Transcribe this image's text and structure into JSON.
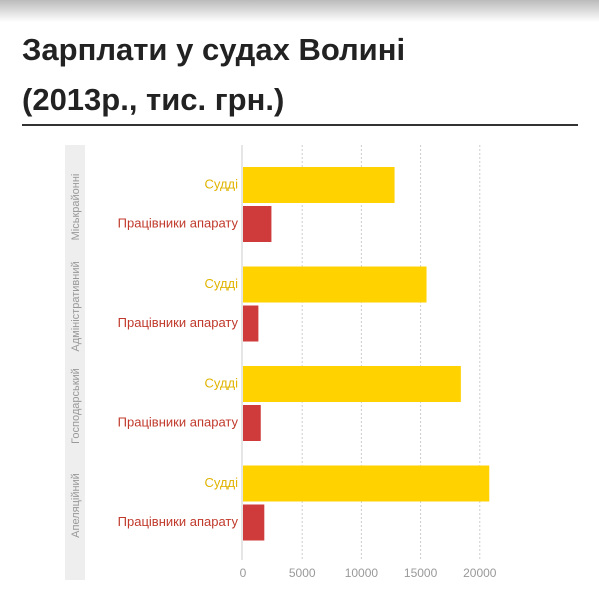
{
  "chart_data": {
    "type": "bar",
    "orientation": "horizontal",
    "title": "Зарплати у судах Волині (2013р., тис. грн.)",
    "categories": [
      "Міськрайонні",
      "Адміністративний",
      "Господарський",
      "Апеляційний"
    ],
    "series": [
      {
        "name": "Судді",
        "color": "#ffd200",
        "values": [
          12800,
          15500,
          18400,
          20800
        ]
      },
      {
        "name": "Працівники апарату",
        "color": "#cf3a3a",
        "values": [
          2400,
          1300,
          1500,
          1800
        ]
      }
    ],
    "xlim": [
      0,
      25000
    ],
    "xticks": [
      0,
      5000,
      10000,
      15000,
      20000
    ],
    "grid": true
  }
}
